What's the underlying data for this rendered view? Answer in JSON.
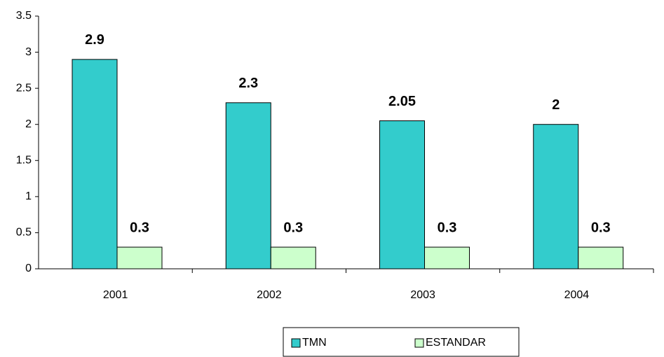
{
  "chart_data": {
    "type": "bar",
    "categories": [
      "2001",
      "2002",
      "2003",
      "2004"
    ],
    "series": [
      {
        "name": "TMN",
        "color": "#33cccc",
        "values": [
          2.9,
          2.3,
          2.05,
          2
        ]
      },
      {
        "name": "ESTANDAR",
        "color": "#ccffcc",
        "values": [
          0.3,
          0.3,
          0.3,
          0.3
        ]
      }
    ],
    "ylim": [
      0,
      3.5
    ],
    "yticks": [
      0,
      0.5,
      1,
      1.5,
      2,
      2.5,
      3,
      3.5
    ],
    "grid": false,
    "legend": "bottom"
  }
}
